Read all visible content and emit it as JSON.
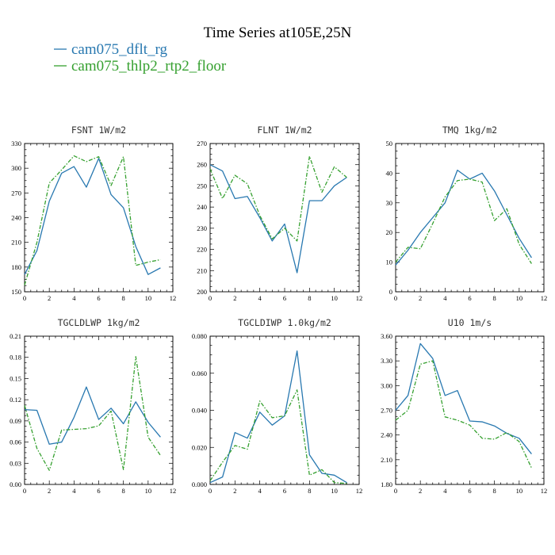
{
  "figure": {
    "title": "Time Series at105E,25N",
    "legend": [
      {
        "name": "cam075_dflt_rg",
        "color": "#2878b0",
        "dash": "none"
      },
      {
        "name": "cam075_thlp2_rtp2_floor",
        "color": "#35a02f",
        "dash": "5,2,1.5,2"
      }
    ]
  },
  "chart_data": [
    {
      "type": "line",
      "panel_title": "FSNT  1W/m2",
      "x": [
        0,
        1,
        2,
        3,
        4,
        5,
        6,
        7,
        8,
        9,
        10,
        11
      ],
      "xlim": [
        0,
        12
      ],
      "xticks": [
        "0",
        "2",
        "4",
        "6",
        "8",
        "10",
        "12"
      ],
      "ylim": [
        150,
        330
      ],
      "yticks": [
        "150",
        "180",
        "210",
        "240",
        "270",
        "300",
        "330"
      ],
      "series": [
        {
          "name": "cam075_dflt_rg",
          "values": [
            171,
            200,
            260,
            294,
            302,
            277,
            312,
            268,
            252,
            205,
            171,
            179
          ]
        },
        {
          "name": "cam075_thlp2_rtp2_floor",
          "values": [
            158,
            210,
            282,
            298,
            315,
            308,
            314,
            279,
            314,
            182,
            186,
            189
          ]
        }
      ]
    },
    {
      "type": "line",
      "panel_title": "FLNT  1W/m2",
      "x": [
        0,
        1,
        2,
        3,
        4,
        5,
        6,
        7,
        8,
        9,
        10,
        11
      ],
      "xlim": [
        0,
        12
      ],
      "xticks": [
        "0",
        "2",
        "4",
        "6",
        "8",
        "10",
        "12"
      ],
      "ylim": [
        200,
        270
      ],
      "yticks": [
        "200",
        "210",
        "220",
        "230",
        "240",
        "250",
        "260",
        "270"
      ],
      "series": [
        {
          "name": "cam075_dflt_rg",
          "values": [
            260,
            257,
            244,
            245,
            235,
            224,
            232,
            209,
            243,
            243,
            250,
            254
          ]
        },
        {
          "name": "cam075_thlp2_rtp2_floor",
          "values": [
            258,
            244,
            255,
            251,
            236,
            225,
            230,
            224,
            264,
            247,
            259,
            254
          ]
        }
      ]
    },
    {
      "type": "line",
      "panel_title": "TMQ  1kg/m2",
      "x": [
        0,
        1,
        2,
        3,
        4,
        5,
        6,
        7,
        8,
        9,
        10,
        11
      ],
      "xlim": [
        0,
        12
      ],
      "xticks": [
        "0",
        "2",
        "4",
        "6",
        "8",
        "10",
        "12"
      ],
      "ylim": [
        0,
        50
      ],
      "yticks": [
        "0",
        "10",
        "20",
        "30",
        "40",
        "50"
      ],
      "series": [
        {
          "name": "cam075_dflt_rg",
          "values": [
            9,
            14,
            20,
            25,
            30,
            41,
            38,
            40,
            34,
            26,
            18,
            11.5
          ]
        },
        {
          "name": "cam075_thlp2_rtp2_floor",
          "values": [
            10,
            15,
            14.5,
            23,
            32,
            37.5,
            38,
            37,
            24,
            28,
            16,
            9.5
          ]
        }
      ]
    },
    {
      "type": "line",
      "panel_title": "TGCLDLWP  1kg/m2",
      "x": [
        0,
        1,
        2,
        3,
        4,
        5,
        6,
        7,
        8,
        9,
        10,
        11
      ],
      "xlim": [
        0,
        12
      ],
      "xticks": [
        "0",
        "2",
        "4",
        "6",
        "8",
        "10",
        "12"
      ],
      "ylim": [
        0,
        0.21
      ],
      "yticks": [
        "0.00",
        "0.03",
        "0.06",
        "0.09",
        "0.12",
        "0.15",
        "0.18",
        "0.21"
      ],
      "series": [
        {
          "name": "cam075_dflt_rg",
          "values": [
            0.106,
            0.105,
            0.057,
            0.06,
            0.095,
            0.138,
            0.092,
            0.108,
            0.086,
            0.117,
            0.088,
            0.067
          ]
        },
        {
          "name": "cam075_thlp2_rtp2_floor",
          "values": [
            0.112,
            0.051,
            0.02,
            0.077,
            0.078,
            0.079,
            0.083,
            0.104,
            0.021,
            0.181,
            0.067,
            0.041
          ]
        }
      ]
    },
    {
      "type": "line",
      "panel_title": "TGCLDIWP  1.0kg/m2",
      "x": [
        0,
        1,
        2,
        3,
        4,
        5,
        6,
        7,
        8,
        9,
        10,
        11
      ],
      "xlim": [
        0,
        12
      ],
      "xticks": [
        "0",
        "2",
        "4",
        "6",
        "8",
        "10",
        "12"
      ],
      "ylim": [
        0,
        0.08
      ],
      "yticks": [
        "0.000",
        "0.020",
        "0.040",
        "0.060",
        "0.080"
      ],
      "series": [
        {
          "name": "cam075_dflt_rg",
          "values": [
            0.001,
            0.004,
            0.028,
            0.025,
            0.039,
            0.032,
            0.037,
            0.072,
            0.016,
            0.006,
            0.005,
            0.001
          ]
        },
        {
          "name": "cam075_thlp2_rtp2_floor",
          "values": [
            0.002,
            0.012,
            0.021,
            0.019,
            0.045,
            0.036,
            0.037,
            0.051,
            0.005,
            0.008,
            0.001,
            0.0005
          ]
        }
      ]
    },
    {
      "type": "line",
      "panel_title": "U10  1m/s",
      "x": [
        0,
        1,
        2,
        3,
        4,
        5,
        6,
        7,
        8,
        9,
        10,
        11
      ],
      "xlim": [
        0,
        12
      ],
      "xticks": [
        "0",
        "2",
        "4",
        "6",
        "8",
        "10",
        "12"
      ],
      "ylim": [
        1.8,
        3.6
      ],
      "yticks": [
        "1.80",
        "2.10",
        "2.40",
        "2.70",
        "3.00",
        "3.30",
        "3.60"
      ],
      "series": [
        {
          "name": "cam075_dflt_rg",
          "values": [
            2.7,
            2.88,
            3.51,
            3.33,
            2.88,
            2.94,
            2.57,
            2.56,
            2.51,
            2.42,
            2.36,
            2.17
          ]
        },
        {
          "name": "cam075_thlp2_rtp2_floor",
          "values": [
            2.58,
            2.7,
            3.26,
            3.3,
            2.62,
            2.58,
            2.52,
            2.36,
            2.35,
            2.43,
            2.32,
            2.0
          ]
        }
      ]
    }
  ]
}
